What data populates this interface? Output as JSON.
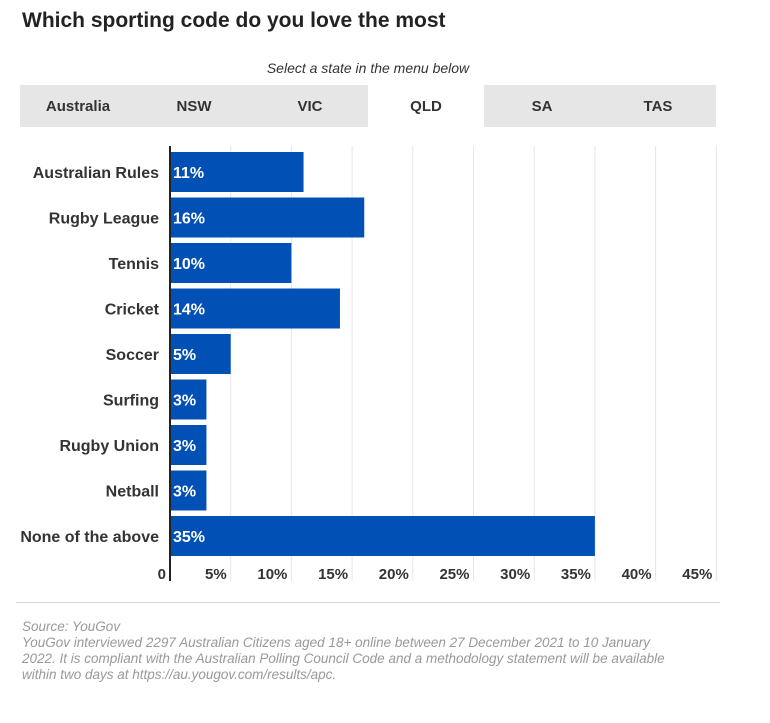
{
  "title": "Which sporting code do you love the most",
  "subtitle": "Select a state in the menu below",
  "tabs": [
    {
      "label": "Australia",
      "active": false
    },
    {
      "label": "NSW",
      "active": false
    },
    {
      "label": "VIC",
      "active": false
    },
    {
      "label": "QLD",
      "active": true
    },
    {
      "label": "SA",
      "active": false
    },
    {
      "label": "TAS",
      "active": false
    }
  ],
  "chart_data": {
    "type": "bar",
    "orientation": "horizontal",
    "categories": [
      "Australian Rules",
      "Rugby League",
      "Tennis",
      "Cricket",
      "Soccer",
      "Surfing",
      "Rugby Union",
      "Netball",
      "None of the above"
    ],
    "values": [
      11,
      16,
      10,
      14,
      5,
      3,
      3,
      3,
      35
    ],
    "data_labels": [
      "11%",
      "16%",
      "10%",
      "14%",
      "5%",
      "3%",
      "3%",
      "3%",
      "35%"
    ],
    "x_ticks": [
      "0",
      "5%",
      "10%",
      "15%",
      "20%",
      "25%",
      "30%",
      "35%",
      "40%",
      "45%"
    ],
    "xlim": [
      0,
      45
    ],
    "grid": true,
    "bar_color": "#0050b5",
    "grid_color": "#e6e6e6"
  },
  "footer": {
    "source": "Source: YouGov",
    "line1": "YouGov interviewed 2297 Australian Citizens aged 18+ online between 27 December 2021 to 10 January",
    "line2": "2022. It is compliant with the Australian Polling Council Code and a methodology statement will be available",
    "line3": "within two days at https://au.yougov.com/results/apc."
  }
}
